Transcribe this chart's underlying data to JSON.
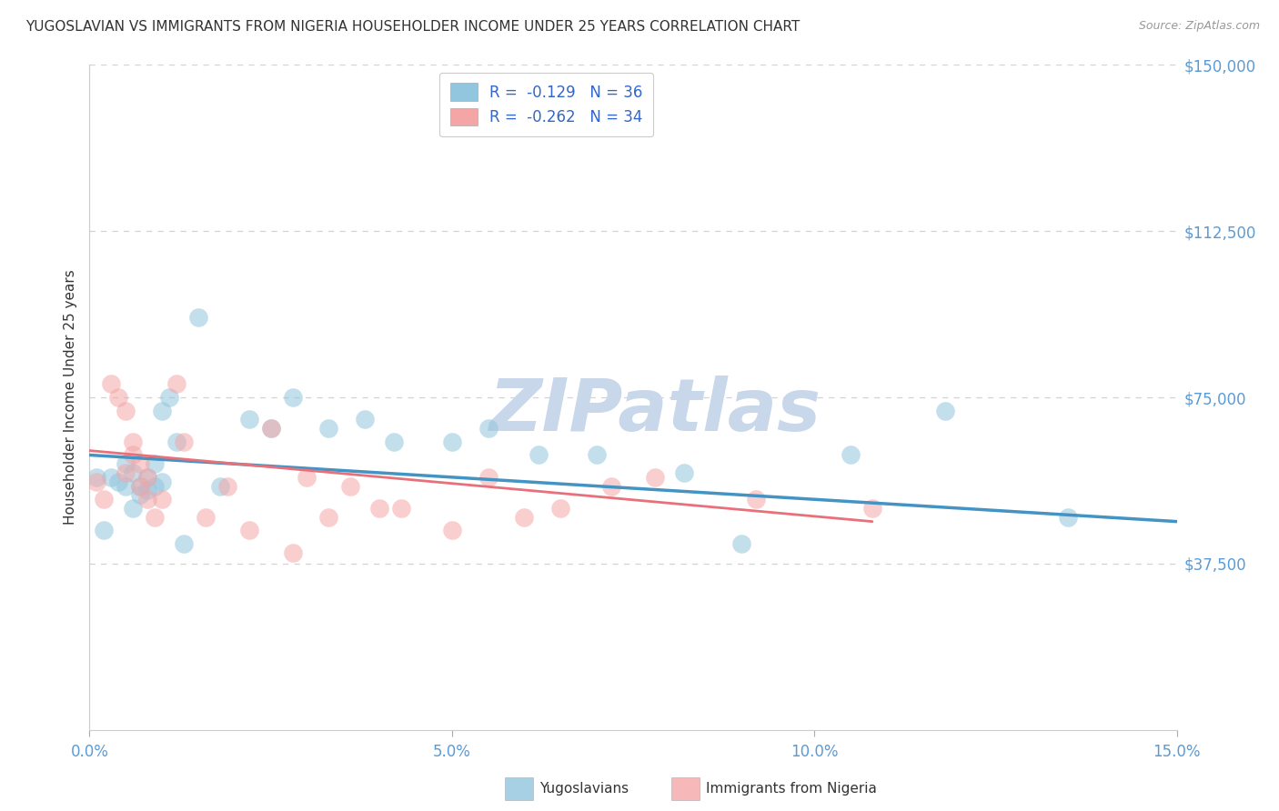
{
  "title": "YUGOSLAVIAN VS IMMIGRANTS FROM NIGERIA HOUSEHOLDER INCOME UNDER 25 YEARS CORRELATION CHART",
  "source": "Source: ZipAtlas.com",
  "ylabel": "Householder Income Under 25 years",
  "xlim": [
    0.0,
    0.15
  ],
  "ylim": [
    0,
    150000
  ],
  "yticks": [
    37500,
    75000,
    112500,
    150000
  ],
  "ytick_labels": [
    "$37,500",
    "$75,000",
    "$112,500",
    "$150,000"
  ],
  "xtick_positions": [
    0.0,
    0.05,
    0.1,
    0.15
  ],
  "xtick_labels": [
    "0.0%",
    "5.0%",
    "10.0%",
    "15.0%"
  ],
  "legend1_label": "R =  -0.129   N = 36",
  "legend2_label": "R =  -0.262   N = 34",
  "legend_bottom1": "Yugoslavians",
  "legend_bottom2": "Immigrants from Nigeria",
  "blue_color": "#92c5de",
  "pink_color": "#f4a6a6",
  "line_blue_color": "#4393c3",
  "line_pink_color": "#e8707a",
  "axis_color": "#5b9bd5",
  "grid_color": "#d3d3d3",
  "watermark_color": "#c8d8ea",
  "title_fontsize": 11,
  "source_fontsize": 9,
  "blue_x": [
    0.001,
    0.002,
    0.003,
    0.004,
    0.005,
    0.005,
    0.006,
    0.006,
    0.007,
    0.007,
    0.008,
    0.008,
    0.009,
    0.009,
    0.01,
    0.01,
    0.011,
    0.012,
    0.013,
    0.015,
    0.018,
    0.022,
    0.025,
    0.028,
    0.033,
    0.038,
    0.042,
    0.05,
    0.055,
    0.062,
    0.07,
    0.082,
    0.09,
    0.105,
    0.118,
    0.135
  ],
  "blue_y": [
    57000,
    45000,
    57000,
    56000,
    60000,
    55000,
    50000,
    58000,
    55000,
    53000,
    54000,
    57000,
    60000,
    55000,
    72000,
    56000,
    75000,
    65000,
    42000,
    93000,
    55000,
    70000,
    68000,
    75000,
    68000,
    70000,
    65000,
    65000,
    68000,
    62000,
    62000,
    58000,
    42000,
    62000,
    72000,
    48000
  ],
  "pink_x": [
    0.001,
    0.002,
    0.003,
    0.004,
    0.005,
    0.005,
    0.006,
    0.006,
    0.007,
    0.007,
    0.008,
    0.008,
    0.009,
    0.01,
    0.012,
    0.013,
    0.016,
    0.019,
    0.022,
    0.025,
    0.028,
    0.03,
    0.033,
    0.036,
    0.04,
    0.043,
    0.05,
    0.055,
    0.06,
    0.065,
    0.072,
    0.078,
    0.092,
    0.108
  ],
  "pink_y": [
    56000,
    52000,
    78000,
    75000,
    72000,
    58000,
    62000,
    65000,
    60000,
    55000,
    52000,
    57000,
    48000,
    52000,
    78000,
    65000,
    48000,
    55000,
    45000,
    68000,
    40000,
    57000,
    48000,
    55000,
    50000,
    50000,
    45000,
    57000,
    48000,
    50000,
    55000,
    57000,
    52000,
    50000
  ]
}
